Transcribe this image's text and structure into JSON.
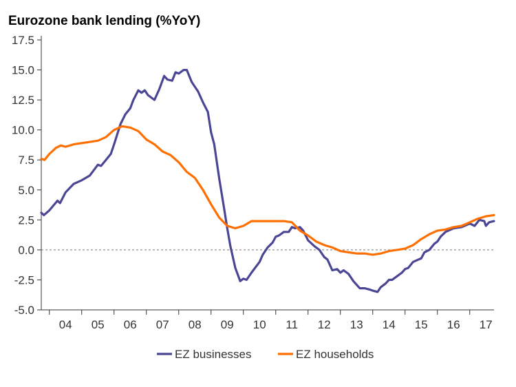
{
  "chart_data": {
    "type": "line",
    "title": "Eurozone bank lending (%YoY)",
    "xlabel": "",
    "ylabel": "",
    "x_range": [
      2003.75,
      2017.75
    ],
    "ylim": [
      -5.0,
      17.5
    ],
    "y_ticks": [
      "17.5",
      "15.0",
      "12.5",
      "10.0",
      "7.5",
      "5.0",
      "2.5",
      "0.0",
      "-2.5",
      "-5.0"
    ],
    "y_tick_values": [
      17.5,
      15.0,
      12.5,
      10.0,
      7.5,
      5.0,
      2.5,
      0.0,
      -2.5,
      -5.0
    ],
    "x_tick_labels": [
      "04",
      "05",
      "06",
      "07",
      "08",
      "09",
      "10",
      "11",
      "12",
      "13",
      "14",
      "15",
      "16",
      "17"
    ],
    "x_tick_centers": [
      2004.5,
      2005.5,
      2006.5,
      2007.5,
      2008.5,
      2009.5,
      2010.5,
      2011.5,
      2012.5,
      2013.5,
      2014.5,
      2015.5,
      2016.5,
      2017.5
    ],
    "zero_line": "dashed",
    "grid": false,
    "legend_position": "bottom",
    "series": [
      {
        "name": "EZ businesses",
        "color": "#4b4694",
        "points": [
          [
            2003.75,
            3.1
          ],
          [
            2003.83,
            2.9
          ],
          [
            2004.0,
            3.3
          ],
          [
            2004.25,
            4.1
          ],
          [
            2004.33,
            3.9
          ],
          [
            2004.5,
            4.8
          ],
          [
            2004.75,
            5.5
          ],
          [
            2005.0,
            5.8
          ],
          [
            2005.25,
            6.2
          ],
          [
            2005.5,
            7.1
          ],
          [
            2005.6,
            7.0
          ],
          [
            2005.75,
            7.5
          ],
          [
            2005.9,
            8.0
          ],
          [
            2006.0,
            8.8
          ],
          [
            2006.2,
            10.5
          ],
          [
            2006.35,
            11.3
          ],
          [
            2006.5,
            11.8
          ],
          [
            2006.6,
            12.5
          ],
          [
            2006.75,
            13.3
          ],
          [
            2006.85,
            13.1
          ],
          [
            2006.95,
            13.3
          ],
          [
            2007.05,
            12.9
          ],
          [
            2007.25,
            12.5
          ],
          [
            2007.4,
            13.4
          ],
          [
            2007.55,
            14.5
          ],
          [
            2007.65,
            14.2
          ],
          [
            2007.8,
            14.1
          ],
          [
            2007.9,
            14.8
          ],
          [
            2008.0,
            14.7
          ],
          [
            2008.15,
            15.0
          ],
          [
            2008.25,
            15.0
          ],
          [
            2008.4,
            14.0
          ],
          [
            2008.6,
            13.2
          ],
          [
            2008.75,
            12.3
          ],
          [
            2008.9,
            11.5
          ],
          [
            2009.0,
            9.8
          ],
          [
            2009.1,
            8.8
          ],
          [
            2009.25,
            6.0
          ],
          [
            2009.4,
            3.5
          ],
          [
            2009.5,
            1.8
          ],
          [
            2009.6,
            0.3
          ],
          [
            2009.75,
            -1.5
          ],
          [
            2009.9,
            -2.6
          ],
          [
            2010.0,
            -2.4
          ],
          [
            2010.1,
            -2.5
          ],
          [
            2010.25,
            -1.9
          ],
          [
            2010.5,
            -1.0
          ],
          [
            2010.6,
            -0.4
          ],
          [
            2010.75,
            0.2
          ],
          [
            2010.9,
            0.6
          ],
          [
            2011.0,
            1.1
          ],
          [
            2011.1,
            1.2
          ],
          [
            2011.25,
            1.5
          ],
          [
            2011.4,
            1.5
          ],
          [
            2011.5,
            1.9
          ],
          [
            2011.6,
            1.8
          ],
          [
            2011.75,
            1.9
          ],
          [
            2011.85,
            1.6
          ],
          [
            2012.0,
            0.8
          ],
          [
            2012.2,
            0.3
          ],
          [
            2012.35,
            0.0
          ],
          [
            2012.5,
            -0.6
          ],
          [
            2012.6,
            -0.8
          ],
          [
            2012.75,
            -1.7
          ],
          [
            2012.9,
            -1.6
          ],
          [
            2013.0,
            -1.9
          ],
          [
            2013.1,
            -1.7
          ],
          [
            2013.25,
            -2.0
          ],
          [
            2013.4,
            -2.6
          ],
          [
            2013.5,
            -2.9
          ],
          [
            2013.6,
            -3.2
          ],
          [
            2013.75,
            -3.2
          ],
          [
            2013.9,
            -3.3
          ],
          [
            2014.0,
            -3.4
          ],
          [
            2014.15,
            -3.5
          ],
          [
            2014.25,
            -3.1
          ],
          [
            2014.4,
            -2.8
          ],
          [
            2014.5,
            -2.5
          ],
          [
            2014.6,
            -2.5
          ],
          [
            2014.75,
            -2.2
          ],
          [
            2014.9,
            -1.9
          ],
          [
            2015.0,
            -1.6
          ],
          [
            2015.1,
            -1.5
          ],
          [
            2015.25,
            -1.0
          ],
          [
            2015.5,
            -0.7
          ],
          [
            2015.6,
            -0.2
          ],
          [
            2015.75,
            0.0
          ],
          [
            2015.9,
            0.5
          ],
          [
            2016.0,
            0.7
          ],
          [
            2016.1,
            1.1
          ],
          [
            2016.25,
            1.5
          ],
          [
            2016.5,
            1.8
          ],
          [
            2016.75,
            1.9
          ],
          [
            2017.0,
            2.2
          ],
          [
            2017.15,
            2.0
          ],
          [
            2017.3,
            2.5
          ],
          [
            2017.45,
            2.4
          ],
          [
            2017.5,
            2.0
          ],
          [
            2017.6,
            2.3
          ],
          [
            2017.75,
            2.4
          ]
        ]
      },
      {
        "name": "EZ households",
        "color": "#ff6f00",
        "points": [
          [
            2003.75,
            7.6
          ],
          [
            2003.85,
            7.5
          ],
          [
            2004.0,
            8.0
          ],
          [
            2004.2,
            8.5
          ],
          [
            2004.35,
            8.7
          ],
          [
            2004.5,
            8.6
          ],
          [
            2004.75,
            8.8
          ],
          [
            2005.0,
            8.9
          ],
          [
            2005.25,
            9.0
          ],
          [
            2005.5,
            9.1
          ],
          [
            2005.75,
            9.4
          ],
          [
            2006.0,
            10.0
          ],
          [
            2006.25,
            10.3
          ],
          [
            2006.5,
            10.2
          ],
          [
            2006.75,
            9.9
          ],
          [
            2007.0,
            9.2
          ],
          [
            2007.25,
            8.8
          ],
          [
            2007.5,
            8.2
          ],
          [
            2007.75,
            7.9
          ],
          [
            2008.0,
            7.3
          ],
          [
            2008.25,
            6.5
          ],
          [
            2008.5,
            6.0
          ],
          [
            2008.75,
            5.0
          ],
          [
            2009.0,
            3.8
          ],
          [
            2009.25,
            2.7
          ],
          [
            2009.5,
            2.0
          ],
          [
            2009.75,
            1.8
          ],
          [
            2010.0,
            2.0
          ],
          [
            2010.25,
            2.4
          ],
          [
            2010.5,
            2.4
          ],
          [
            2010.75,
            2.4
          ],
          [
            2011.0,
            2.4
          ],
          [
            2011.25,
            2.4
          ],
          [
            2011.5,
            2.3
          ],
          [
            2011.75,
            1.6
          ],
          [
            2012.0,
            1.2
          ],
          [
            2012.25,
            0.7
          ],
          [
            2012.5,
            0.4
          ],
          [
            2012.75,
            0.2
          ],
          [
            2013.0,
            -0.1
          ],
          [
            2013.25,
            -0.2
          ],
          [
            2013.5,
            -0.3
          ],
          [
            2013.75,
            -0.3
          ],
          [
            2014.0,
            -0.4
          ],
          [
            2014.25,
            -0.3
          ],
          [
            2014.5,
            -0.1
          ],
          [
            2014.75,
            0.0
          ],
          [
            2015.0,
            0.1
          ],
          [
            2015.25,
            0.4
          ],
          [
            2015.5,
            0.9
          ],
          [
            2015.75,
            1.3
          ],
          [
            2016.0,
            1.6
          ],
          [
            2016.25,
            1.7
          ],
          [
            2016.5,
            1.9
          ],
          [
            2016.75,
            2.0
          ],
          [
            2017.0,
            2.3
          ],
          [
            2017.25,
            2.6
          ],
          [
            2017.5,
            2.8
          ],
          [
            2017.75,
            2.9
          ]
        ]
      }
    ]
  }
}
